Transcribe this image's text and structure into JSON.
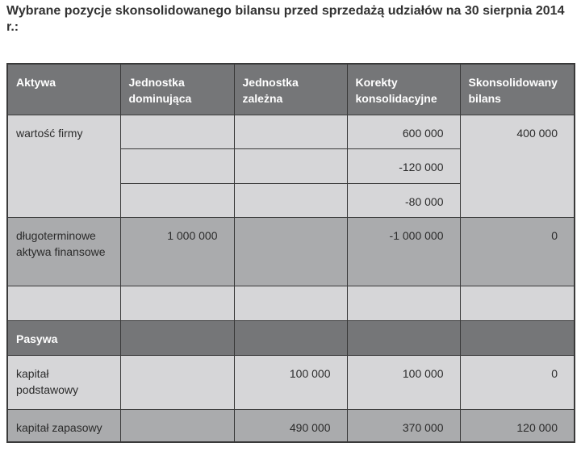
{
  "title": "Wybrane pozycje skonsolidowanego bilansu przed sprzedażą udziałów na 30 sierpnia 2014 r.:",
  "headers": [
    "Aktywa",
    "Jednostka dominująca",
    "Jednostka zależna",
    "Korekty konsolidacyjne",
    "Skonsolidowany bilans"
  ],
  "rows": {
    "goodwill": {
      "label": "wartość firmy",
      "corrections": [
        "600 000",
        "-120 000",
        "-80 000"
      ],
      "consolidated": "400 000"
    },
    "lt_assets": {
      "label": "długoterminowe aktywa finansowe",
      "parent": "1 000 000",
      "correction": "-1 000 000",
      "consolidated": "0"
    },
    "section": "Pasywa",
    "share_capital": {
      "label": "kapitał podstawowy",
      "subsidiary": "100 000",
      "correction": "100 000",
      "consolidated": "0"
    },
    "reserve_capital": {
      "label": "kapitał zapasowy",
      "subsidiary": "490 000",
      "correction": "370 000",
      "consolidated": "120 000"
    }
  }
}
